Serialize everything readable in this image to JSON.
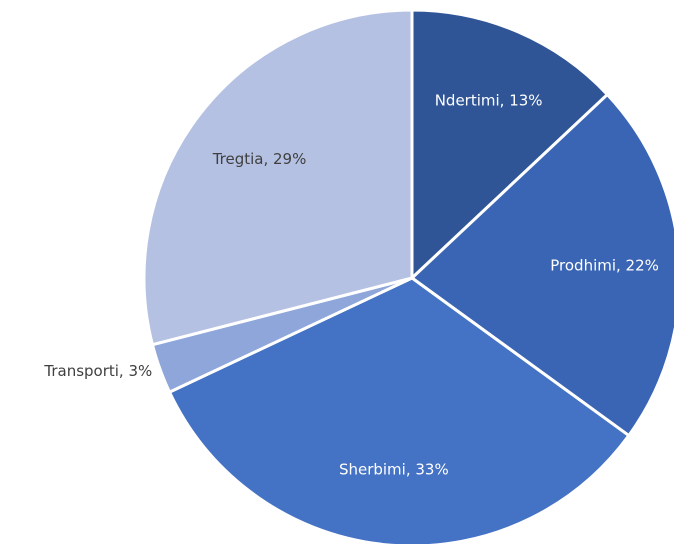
{
  "chart_data": {
    "type": "pie",
    "categories": [
      "Ndertimi",
      "Prodhimi",
      "Sherbimi",
      "Transporti",
      "Tregtia"
    ],
    "values": [
      13,
      22,
      33,
      3,
      29
    ],
    "value_labels": [
      "Ndertimi, 13%",
      "Prodhimi, 22%",
      "Sherbimi, 33%",
      "Transporti, 3%",
      "Tregtia, 29%"
    ],
    "colors": [
      "#2f5597",
      "#3a65b4",
      "#4472c4",
      "#8ea6d9",
      "#b5c1e2"
    ]
  }
}
